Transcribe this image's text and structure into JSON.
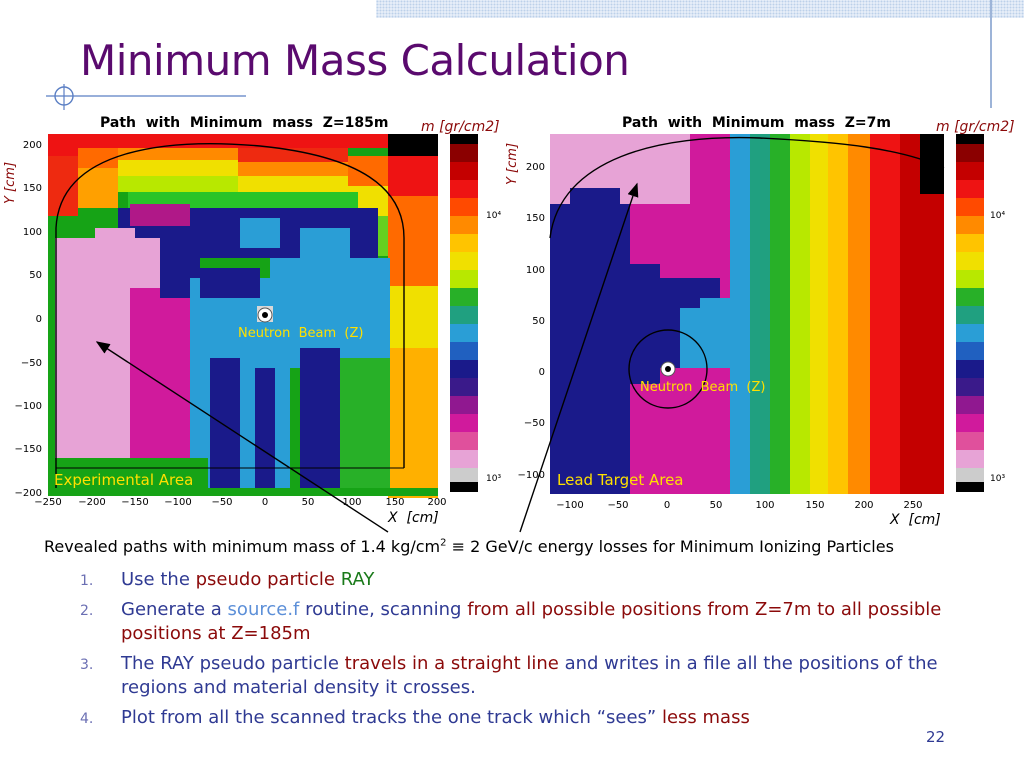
{
  "slide": {
    "title": "Minimum Mass Calculation",
    "page_number": "22"
  },
  "left_plot": {
    "title": "Path  with  Minimum  mass  Z=185m",
    "colorbar_label": "m [gr/cm2]",
    "y_label": "Y [cm]",
    "x_label": "X  [cm]",
    "y_ticks": [
      "200",
      "150",
      "100",
      "50",
      "0",
      "−50",
      "−100",
      "−150",
      "−200"
    ],
    "x_ticks": [
      "−250",
      "−200",
      "−150",
      "−100",
      "−50",
      "0",
      "50",
      "100",
      "150",
      "200"
    ],
    "colorbar_ticks": [
      "10⁴",
      "10³"
    ],
    "beam_label": "Neutron  Beam  (Z)",
    "area_label": "Experimental Area"
  },
  "right_plot": {
    "title": "Path  with  Minimum  mass  Z=7m",
    "colorbar_label": "m [gr/cm2]",
    "y_label": "Y [cm]",
    "x_label": "X  [cm]",
    "y_ticks": [
      "200",
      "150",
      "100",
      "50",
      "0",
      "−50",
      "−100"
    ],
    "x_ticks": [
      "−100",
      "−50",
      "0",
      "50",
      "100",
      "150",
      "200",
      "250"
    ],
    "colorbar_ticks": [
      "10⁴",
      "10³"
    ],
    "beam_label": "Neutron  Beam  (Z)",
    "area_label": "Lead Target Area"
  },
  "caption": {
    "part1": "Revealed paths with minimum mass of 1.4 kg/cm",
    "sup": "2",
    "part2": " ≡ 2 GeV/c energy losses for Minimum Ionizing Particles"
  },
  "steps": [
    {
      "num": "1.",
      "s1": "Use the ",
      "s2": "pseudo particle",
      "s3": " ",
      "s4": "RAY"
    },
    {
      "num": "2.",
      "s1": "Generate a ",
      "s2": "source.f",
      "s3": " routine, scanning ",
      "s4": "from all possible positions from Z=7m to all possible positions at Z=185m"
    },
    {
      "num": "3.",
      "s1": "The RAY pseudo particle ",
      "s2": "travels in a straight line",
      "s3": " and writes in a file all the positions of the regions and material density it crosses."
    },
    {
      "num": "4.",
      "s1": "Plot from all the scanned tracks the one track which “sees” ",
      "s2": "less mass"
    }
  ],
  "colors": {
    "title": "#5a0a6e",
    "body_text": "#2f3a93",
    "emphasis_red": "#8b0a0a",
    "emphasis_green": "#1a7a1a",
    "emphasis_light": "#5c8fd8"
  }
}
